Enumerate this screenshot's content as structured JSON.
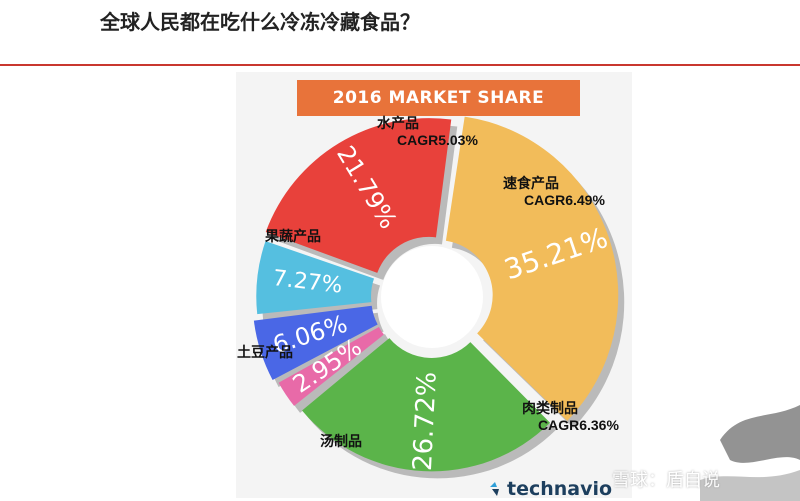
{
  "page": {
    "title": "全球人民都在吃什么冷冻冷藏食品？",
    "accent_color": "#c9372f"
  },
  "chart_data": {
    "type": "pie",
    "title": "2016 MARKET SHARE",
    "style": "exploded-donut",
    "slices": [
      {
        "category": "速食产品",
        "value": 35.21,
        "value_label": "35.21%",
        "cagr": "CAGR6.49%",
        "color": "#f2bc5a"
      },
      {
        "category": "肉类制品",
        "value": 26.72,
        "value_label": "26.72%",
        "cagr": "CAGR6.36%",
        "color": "#5bb44a"
      },
      {
        "category": "汤制品",
        "value": 2.95,
        "value_label": "2.95%",
        "cagr": "",
        "color": "#e86aa8"
      },
      {
        "category": "土豆产品",
        "value": 6.06,
        "value_label": "6.06%",
        "cagr": "",
        "color": "#4a67e6"
      },
      {
        "category": "果蔬产品",
        "value": 7.27,
        "value_label": "7.27%",
        "cagr": "",
        "color": "#55bfe0"
      },
      {
        "category": "水产品",
        "value": 21.79,
        "value_label": "21.79%",
        "cagr": "CAGR5.03%",
        "color": "#e8413b"
      }
    ]
  },
  "footer": {
    "logo_text": "technavio",
    "watermark": "雪球：盾自说"
  }
}
